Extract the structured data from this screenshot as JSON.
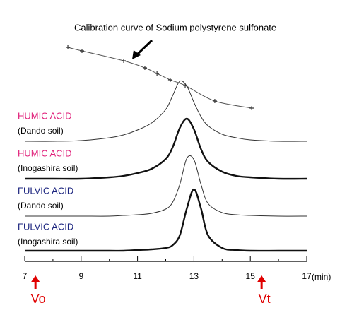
{
  "chart_data": {
    "type": "line",
    "title": "Calibration curve of Sodium polystyrene sulfonate",
    "x_label": "(min)",
    "xlim": [
      7,
      17
    ],
    "xticks": [
      7,
      9,
      11,
      13,
      15,
      17
    ],
    "xminorticks": [
      8,
      10,
      12,
      14,
      16
    ],
    "ylim": [
      0,
      100
    ],
    "calibration": {
      "color": "#555555",
      "x": [
        8.53,
        9.03,
        10.51,
        11.26,
        11.69,
        12.16,
        12.69,
        13.74,
        15.05
      ],
      "values": [
        93,
        88,
        74,
        64,
        56,
        47,
        39,
        17,
        7
      ]
    },
    "x": [
      7,
      8,
      9,
      10,
      10.5,
      11,
      11.5,
      12,
      12.25,
      12.5,
      12.75,
      13,
      13.25,
      13.5,
      14,
      14.5,
      15,
      16,
      17
    ],
    "series": [
      {
        "name": "HUMIC ACID",
        "sample": "(Dando soil)",
        "color": "#333333",
        "name_color": "#e0207a",
        "width": 1,
        "values": [
          0,
          0,
          1,
          5,
          9,
          16,
          26,
          45,
          65,
          85,
          78,
          55,
          35,
          22,
          10,
          5,
          2,
          0,
          0
        ]
      },
      {
        "name": "HUMIC ACID",
        "sample": "(Inogashira soil)",
        "color": "#111111",
        "name_color": "#e0207a",
        "width": 2.4,
        "values": [
          0,
          0,
          0,
          2,
          4,
          8,
          14,
          28,
          45,
          72,
          85,
          70,
          42,
          24,
          10,
          4,
          2,
          0,
          0
        ]
      },
      {
        "name": "FULVIC ACID",
        "sample": "(Dando soil)",
        "color": "#333333",
        "name_color": "#1a237e",
        "width": 1,
        "values": [
          0,
          0,
          0,
          0,
          1,
          2,
          4,
          10,
          20,
          45,
          82,
          80,
          45,
          18,
          5,
          2,
          1,
          0,
          0
        ]
      },
      {
        "name": "FULVIC ACID",
        "sample": "(Inogashira soil)",
        "color": "#111111",
        "name_color": "#1a237e",
        "width": 2.4,
        "values": [
          0,
          0,
          0,
          0,
          0,
          1,
          2,
          4,
          8,
          22,
          60,
          87,
          60,
          22,
          4,
          1,
          0,
          0,
          0
        ]
      }
    ],
    "markers": [
      {
        "label": "Vo",
        "x": 7.38,
        "color": "#e00000"
      },
      {
        "label": "Vt",
        "x": 15.4,
        "color": "#e00000"
      }
    ]
  }
}
